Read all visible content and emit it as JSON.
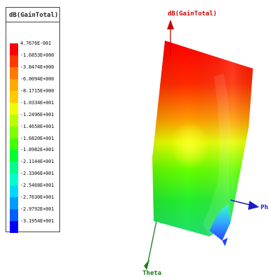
{
  "chart_data": {
    "type": "heatmap",
    "title": "dB(GainTotal)",
    "colorbar": {
      "ticks": [
        "4.7676E-001",
        "-1.6853E+000",
        "-3.8474E+000",
        "-6.0094E+000",
        "-8.1715E+000",
        "-1.0334E+001",
        "-1.2496E+001",
        "-1.4658E+001",
        "-1.6820E+001",
        "-1.8982E+001",
        "-2.1144E+001",
        "-2.3306E+001",
        "-2.5468E+001",
        "-2.7630E+001",
        "-2.9792E+001",
        "-3.1954E+001"
      ],
      "colors": [
        "#ff0000",
        "#ff3a00",
        "#ff7a00",
        "#ffaa00",
        "#ffcc00",
        "#f0ff00",
        "#b8ff00",
        "#7dff00",
        "#40ff00",
        "#00ff30",
        "#00ff8a",
        "#00ffcc",
        "#00d8ff",
        "#009cff",
        "#0060ff",
        "#0000ff"
      ],
      "min": -31.954,
      "max": 0.47676
    },
    "axes": {
      "z_label": "dB(GainTotal)",
      "x_label": "Phi",
      "y_label": "Theta"
    }
  }
}
